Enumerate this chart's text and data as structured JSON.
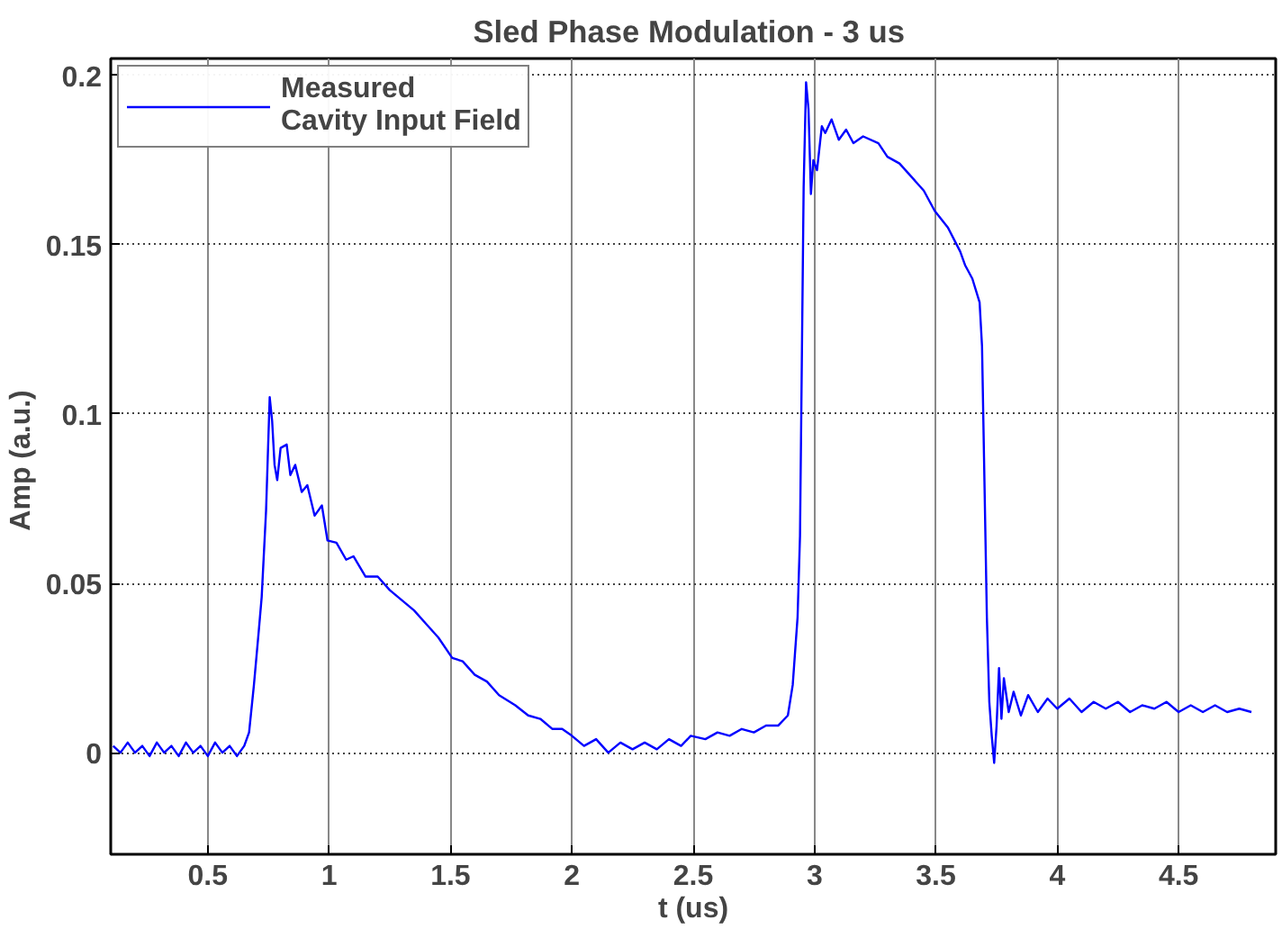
{
  "chart_data": {
    "type": "line",
    "title": "Sled Phase Modulation  - 3 us",
    "xlabel": "t (us)",
    "ylabel": "Amp  (a.u.)",
    "xlim": [
      0.1,
      4.9
    ],
    "ylim": [
      -0.03,
      0.205
    ],
    "xticks": [
      0.5,
      1,
      1.5,
      2,
      2.5,
      3,
      3.5,
      4,
      4.5
    ],
    "yticks": [
      0,
      0.05,
      0.1,
      0.15,
      0.2
    ],
    "grid": true,
    "legend": "top left",
    "marker": "none",
    "line_style": "solid",
    "series": [
      {
        "name": "Measured\nCavity Input Field",
        "color": "#0000ff",
        "x": [
          0.11,
          0.14,
          0.17,
          0.2,
          0.23,
          0.26,
          0.29,
          0.32,
          0.35,
          0.38,
          0.41,
          0.44,
          0.47,
          0.5,
          0.53,
          0.56,
          0.59,
          0.62,
          0.65,
          0.67,
          0.69,
          0.71,
          0.722,
          0.74,
          0.755,
          0.765,
          0.775,
          0.786,
          0.8,
          0.825,
          0.84,
          0.86,
          0.887,
          0.91,
          0.94,
          0.97,
          0.993,
          1.03,
          1.07,
          1.1,
          1.15,
          1.2,
          1.25,
          1.3,
          1.35,
          1.4,
          1.45,
          1.507,
          1.55,
          1.6,
          1.65,
          1.7,
          1.767,
          1.82,
          1.87,
          1.92,
          1.96,
          2.0,
          2.05,
          2.1,
          2.15,
          2.2,
          2.25,
          2.3,
          2.35,
          2.4,
          2.45,
          2.49,
          2.55,
          2.6,
          2.65,
          2.7,
          2.75,
          2.8,
          2.85,
          2.89,
          2.91,
          2.93,
          2.94,
          2.955,
          2.965,
          2.975,
          2.985,
          2.995,
          3.01,
          3.03,
          3.044,
          3.07,
          3.1,
          3.13,
          3.16,
          3.2,
          3.263,
          3.3,
          3.35,
          3.4,
          3.45,
          3.495,
          3.55,
          3.6,
          3.62,
          3.65,
          3.68,
          3.69,
          3.7,
          3.71,
          3.72,
          3.73,
          3.74,
          3.75,
          3.76,
          3.77,
          3.78,
          3.8,
          3.82,
          3.85,
          3.88,
          3.92,
          3.96,
          4.0,
          4.05,
          4.1,
          4.15,
          4.2,
          4.25,
          4.3,
          4.35,
          4.4,
          4.45,
          4.5,
          4.55,
          4.6,
          4.65,
          4.7,
          4.75,
          4.8
        ],
        "values": [
          0.002,
          0.0,
          0.003,
          0.0,
          0.002,
          -0.001,
          0.003,
          0.0,
          0.002,
          -0.001,
          0.003,
          0.0,
          0.002,
          -0.001,
          0.003,
          0.0,
          0.002,
          -0.001,
          0.002,
          0.006,
          0.02,
          0.036,
          0.046,
          0.0715,
          0.105,
          0.098,
          0.085,
          0.0805,
          0.09,
          0.091,
          0.082,
          0.085,
          0.077,
          0.079,
          0.07,
          0.073,
          0.0627,
          0.062,
          0.057,
          0.058,
          0.052,
          0.052,
          0.048,
          0.045,
          0.042,
          0.038,
          0.034,
          0.028,
          0.027,
          0.023,
          0.021,
          0.017,
          0.014,
          0.011,
          0.01,
          0.007,
          0.007,
          0.005,
          0.002,
          0.004,
          0.0,
          0.003,
          0.001,
          0.003,
          0.001,
          0.004,
          0.002,
          0.005,
          0.004,
          0.006,
          0.005,
          0.007,
          0.006,
          0.008,
          0.008,
          0.011,
          0.02,
          0.04,
          0.064,
          0.167,
          0.198,
          0.19,
          0.165,
          0.175,
          0.172,
          0.185,
          0.183,
          0.187,
          0.181,
          0.184,
          0.18,
          0.182,
          0.18,
          0.176,
          0.174,
          0.17,
          0.166,
          0.16,
          0.155,
          0.148,
          0.144,
          0.14,
          0.133,
          0.12,
          0.08,
          0.04,
          0.015,
          0.005,
          -0.003,
          0.008,
          0.025,
          0.01,
          0.022,
          0.012,
          0.018,
          0.011,
          0.017,
          0.012,
          0.016,
          0.013,
          0.016,
          0.012,
          0.015,
          0.013,
          0.015,
          0.012,
          0.014,
          0.013,
          0.015,
          0.012,
          0.014,
          0.012,
          0.014,
          0.012,
          0.013,
          0.012
        ]
      }
    ]
  }
}
